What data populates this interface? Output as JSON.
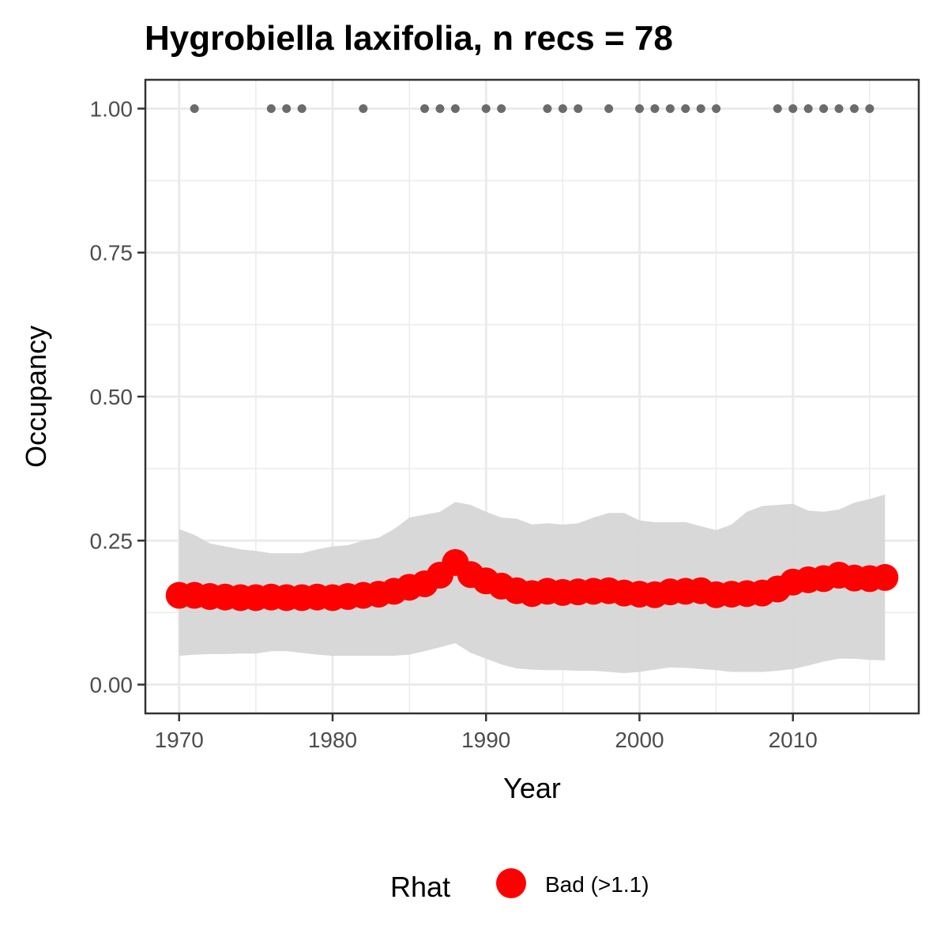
{
  "chart_data": {
    "type": "line",
    "title": "Hygrobiella laxifolia, n recs = 78",
    "xlabel": "Year",
    "ylabel": "Occupancy",
    "xlim": [
      1967.8,
      1917.9
    ],
    "ylim": [
      -0.05,
      1.05
    ],
    "xticks": [
      1970,
      1980,
      1990,
      2000,
      2010
    ],
    "xtick_labels": [
      "1970",
      "1980",
      "1990",
      "2000",
      "2010"
    ],
    "yticks": [
      0,
      0.25,
      0.5,
      0.75,
      1.0
    ],
    "ytick_labels": [
      "0.00",
      "0.25",
      "0.50",
      "0.75",
      "1.00"
    ],
    "grid": true,
    "legend": {
      "position": "bottom",
      "title": "Rhat",
      "entries": [
        {
          "label": "Bad (>1.1)",
          "color": "#ff0000"
        }
      ]
    },
    "colors": {
      "series": "#ff0000",
      "ribbon": "#d6d6d6",
      "records": "#6b6b6b",
      "panel_border": "#333333",
      "grid": "#ebebeb"
    },
    "records": {
      "y": 1.0,
      "years": [
        1971,
        1976,
        1977,
        1978,
        1982,
        1986,
        1987,
        1988,
        1990,
        1991,
        1994,
        1995,
        1996,
        1998,
        2000,
        2001,
        2002,
        2003,
        2004,
        2005,
        2009,
        2010,
        2011,
        2012,
        2013,
        2014,
        2015
      ]
    },
    "series": [
      {
        "x": [
          1970,
          1971,
          1972,
          1973,
          1974,
          1975,
          1976,
          1977,
          1978,
          1979,
          1980,
          1981,
          1982,
          1983,
          1984,
          1985,
          1986,
          1987,
          1988,
          1989,
          1990,
          1991,
          1992,
          1993,
          1994,
          1995,
          1996,
          1997,
          1998,
          1999,
          2000,
          2001,
          2002,
          2003,
          2004,
          2005,
          2006,
          2007,
          2008,
          2009,
          2010,
          2011,
          2012,
          2013,
          2014,
          2015,
          2016
        ],
        "values": [
          0.155,
          0.155,
          0.153,
          0.152,
          0.151,
          0.151,
          0.152,
          0.151,
          0.151,
          0.152,
          0.151,
          0.153,
          0.155,
          0.157,
          0.162,
          0.169,
          0.175,
          0.19,
          0.212,
          0.191,
          0.18,
          0.171,
          0.163,
          0.158,
          0.162,
          0.16,
          0.161,
          0.162,
          0.163,
          0.159,
          0.157,
          0.156,
          0.161,
          0.162,
          0.163,
          0.156,
          0.157,
          0.158,
          0.159,
          0.166,
          0.178,
          0.182,
          0.184,
          0.19,
          0.185,
          0.184,
          0.186
        ],
        "lower": [
          0.05,
          0.052,
          0.053,
          0.053,
          0.054,
          0.054,
          0.058,
          0.058,
          0.055,
          0.052,
          0.05,
          0.05,
          0.05,
          0.05,
          0.05,
          0.052,
          0.058,
          0.065,
          0.072,
          0.055,
          0.045,
          0.035,
          0.028,
          0.026,
          0.025,
          0.025,
          0.024,
          0.024,
          0.022,
          0.02,
          0.022,
          0.026,
          0.03,
          0.029,
          0.027,
          0.025,
          0.022,
          0.022,
          0.022,
          0.024,
          0.027,
          0.033,
          0.04,
          0.045,
          0.045,
          0.043,
          0.042
        ],
        "upper": [
          0.27,
          0.26,
          0.245,
          0.24,
          0.235,
          0.232,
          0.228,
          0.228,
          0.228,
          0.235,
          0.24,
          0.242,
          0.25,
          0.255,
          0.27,
          0.29,
          0.295,
          0.3,
          0.317,
          0.312,
          0.3,
          0.29,
          0.288,
          0.278,
          0.28,
          0.278,
          0.28,
          0.29,
          0.298,
          0.298,
          0.285,
          0.282,
          0.282,
          0.282,
          0.275,
          0.268,
          0.278,
          0.3,
          0.31,
          0.312,
          0.314,
          0.302,
          0.3,
          0.304,
          0.316,
          0.322,
          0.33
        ]
      }
    ]
  }
}
